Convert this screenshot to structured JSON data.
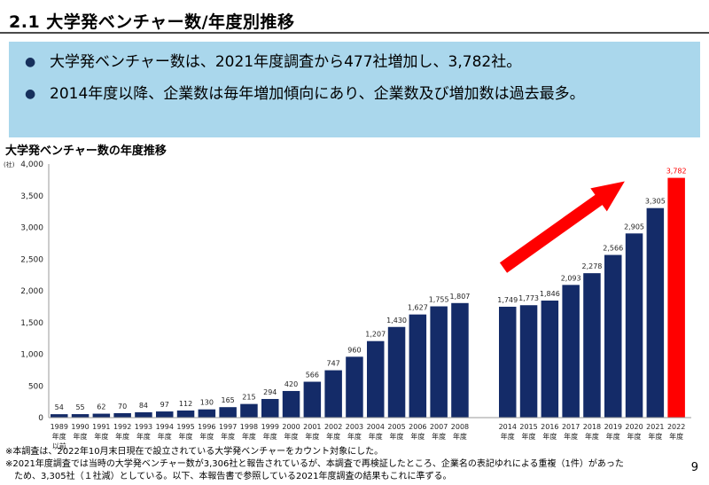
{
  "header": {
    "title": "2.1 大学発ベンチャー数/年度別推移"
  },
  "summary": {
    "bullet_glyph": "●",
    "bullets": [
      "大学発ベンチャー数は、2021年度調査から477社増加し、3,782社。",
      "2014年度以降、企業数は毎年増加傾向にあり、企業数及び増加数は過去最多。"
    ]
  },
  "chart_data": {
    "type": "bar",
    "title": "大学発ベンチャー数の年度推移",
    "ylabel": "(社)",
    "ylim": [
      0,
      4000
    ],
    "yticks": [
      "0",
      "500",
      "1,000",
      "1,500",
      "2,000",
      "2,500",
      "3,000",
      "3,500",
      "4,000"
    ],
    "categories": [
      "1989 年度 以前",
      "1990 年度",
      "1991 年度",
      "1992 年度",
      "1993 年度",
      "1994 年度",
      "1995 年度",
      "1996 年度",
      "1997 年度",
      "1998 年度",
      "1999 年度",
      "2000 年度",
      "2001 年度",
      "2002 年度",
      "2003 年度",
      "2004 年度",
      "2005 年度",
      "2006 年度",
      "2007 年度",
      "2008 年度",
      "2014 年度",
      "2015 年度",
      "2016 年度",
      "2017 年度",
      "2018 年度",
      "2019 年度",
      "2020 年度",
      "2021 年度",
      "2022 年度"
    ],
    "values": [
      54,
      55,
      62,
      70,
      84,
      97,
      112,
      130,
      165,
      215,
      294,
      420,
      566,
      747,
      960,
      1207,
      1430,
      1627,
      1755,
      1807,
      1749,
      1773,
      1846,
      2093,
      2278,
      2566,
      2905,
      3305,
      3782
    ],
    "value_labels": [
      "54",
      "55",
      "62",
      "70",
      "84",
      "97",
      "112",
      "130",
      "165",
      "215",
      "294",
      "420",
      "566",
      "747",
      "960",
      "1,207",
      "1,430",
      "1,627",
      "1,755",
      "1,807",
      "1,749",
      "1,773",
      "1,846",
      "2,093",
      "2,278",
      "2,566",
      "2,905",
      "3,305",
      "3,782"
    ],
    "grid": false,
    "colors": {
      "bar": "#142b68",
      "highlight": "#ff0000",
      "arrow": "#ff0000"
    }
  },
  "notes": [
    "※本調査は、2022年10月末日現在で設立されている大学発ベンチャーをカウント対象にした。",
    "※2021年度調査では当時の大学発ベンチャー数が3,306社と報告されているが、本調査で再検証したところ、企業名の表記ゆれによる重複（1件）があった",
    "ため、3,305社（１社減）としている。以下、本報告書で参照している2021年度調査の結果もこれに準ずる。"
  ],
  "page_number": "9"
}
